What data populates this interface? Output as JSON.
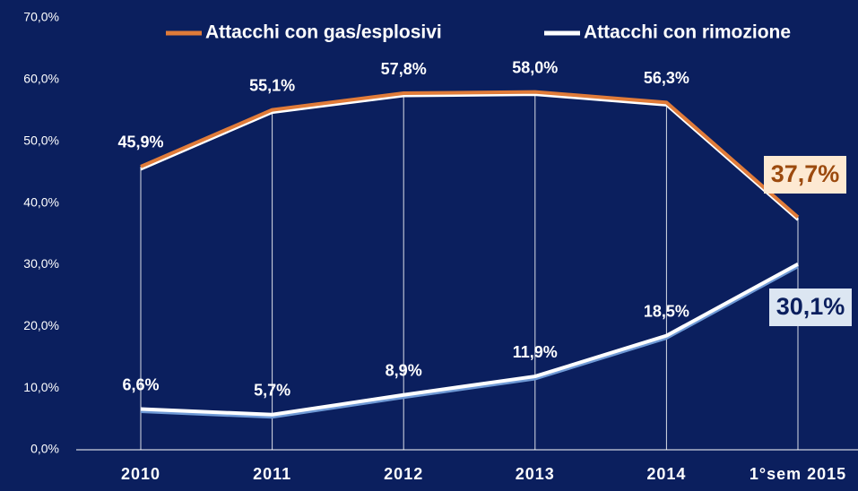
{
  "chart_data": {
    "type": "line",
    "categories": [
      "2010",
      "2011",
      "2012",
      "2013",
      "2014",
      "1°sem 2015"
    ],
    "series": [
      {
        "name": "Attacchi con gas/esplosivi",
        "color": "#e07b39",
        "values": [
          45.9,
          55.1,
          57.8,
          58.0,
          56.3,
          37.7
        ],
        "value_labels": [
          "45,9%",
          "55,1%",
          "57,8%",
          "58,0%",
          "56,3%",
          "37,7%"
        ]
      },
      {
        "name": "Attacchi con rimozione",
        "color": "#ffffff",
        "values": [
          6.6,
          5.7,
          8.9,
          11.9,
          18.5,
          30.1
        ],
        "value_labels": [
          "6,6%",
          "5,7%",
          "8,9%",
          "11,9%",
          "18,5%",
          "30,1%"
        ]
      }
    ],
    "ylim": [
      0,
      70
    ],
    "yticks": [
      {
        "value": 0,
        "label": "0,0%"
      },
      {
        "value": 10,
        "label": "10,0%"
      },
      {
        "value": 20,
        "label": "20,0%"
      },
      {
        "value": 30,
        "label": "30,0%"
      },
      {
        "value": 40,
        "label": "40,0%"
      },
      {
        "value": 50,
        "label": "50,0%"
      },
      {
        "value": 60,
        "label": "60,0%"
      },
      {
        "value": 70,
        "label": "70,0%"
      }
    ],
    "legend": "top"
  }
}
